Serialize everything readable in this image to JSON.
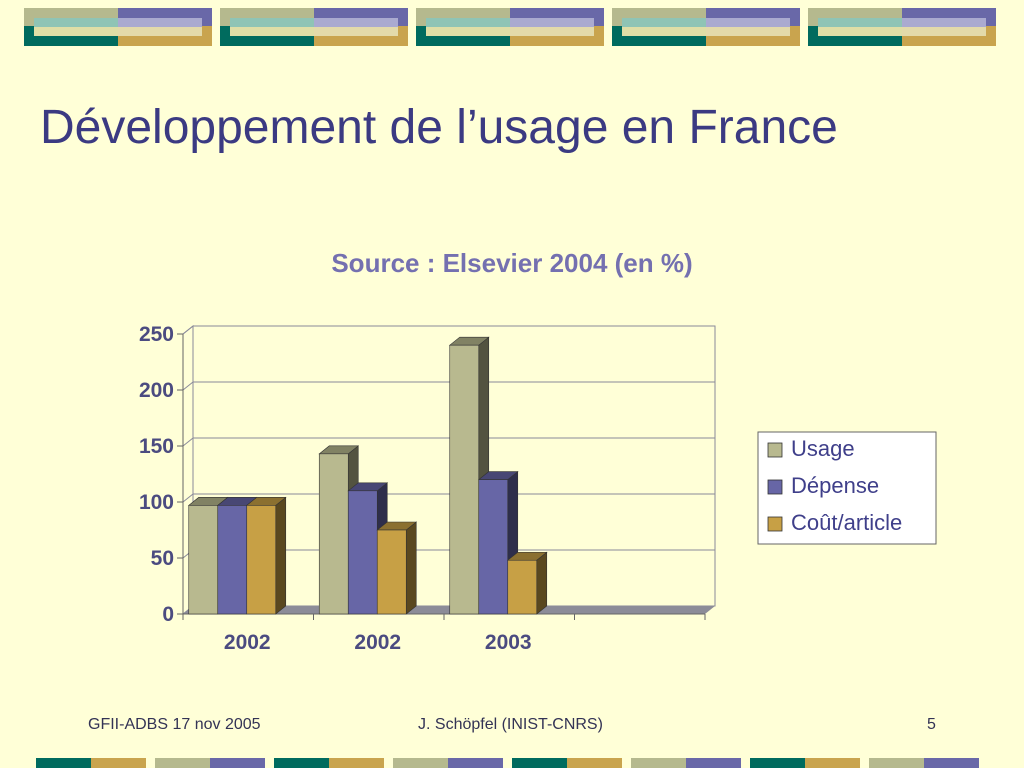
{
  "slide": {
    "title": "Développement de l’usage en France",
    "footer_left": "GFII-ADBS 17 nov 2005",
    "footer_center": "J. Schöpfel (INIST-CNRS)",
    "page_number": "5"
  },
  "banner_colors": {
    "teal": "#006b5e",
    "slate": "#6968a8",
    "sage": "#b5b98e",
    "gold": "#c9a44e",
    "aqua": "#8fc4b5",
    "lavender": "#aaaad0",
    "cream": "#ede3a3"
  },
  "chart_data": {
    "type": "bar",
    "title": "Source : Elsevier 2004 (en %)",
    "categories": [
      "2002",
      "2002",
      "2003"
    ],
    "series": [
      {
        "name": "Usage",
        "values": [
          97,
          143,
          240
        ],
        "color": "#b8b98f"
      },
      {
        "name": "Dépense",
        "values": [
          97,
          110,
          120
        ],
        "color": "#6766a6"
      },
      {
        "name": "Coût/article",
        "values": [
          97,
          75,
          48
        ],
        "color": "#c7a045"
      }
    ],
    "ylim": [
      0,
      250
    ],
    "yticks": [
      0,
      50,
      100,
      150,
      200,
      250
    ],
    "grid": true,
    "legend": "right",
    "three_d": true
  }
}
